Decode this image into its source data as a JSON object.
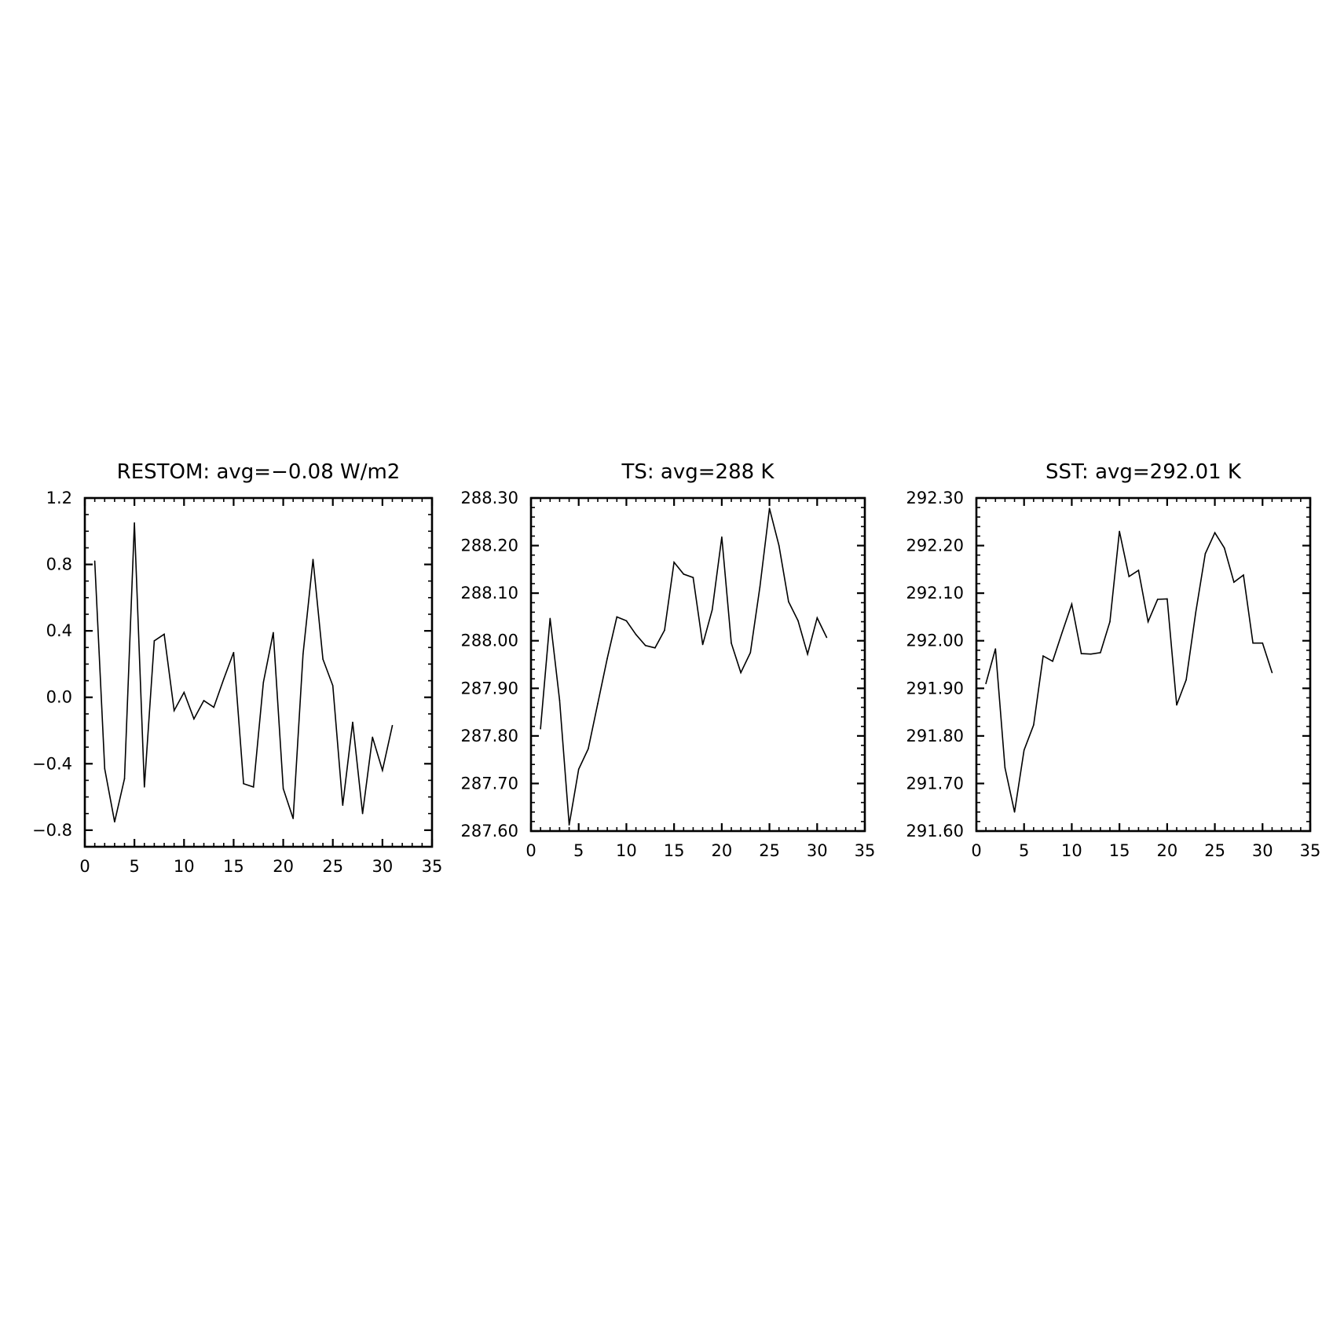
{
  "chart_data": [
    {
      "type": "line",
      "title": "RESTOM: avg=−0.08 W/m2",
      "xlabel": "",
      "ylabel": "",
      "xlim": [
        0,
        35
      ],
      "ylim": [
        -0.9,
        1.2
      ],
      "x_ticks": [
        0,
        5,
        10,
        15,
        20,
        25,
        30,
        35
      ],
      "x_tick_labels": [
        "0",
        "5",
        "10",
        "15",
        "20",
        "25",
        "30",
        "35"
      ],
      "x_minor_step": 1,
      "y_ticks": [
        -0.8,
        -0.4,
        0.0,
        0.4,
        0.8,
        1.2
      ],
      "y_tick_labels": [
        "−0.8",
        "−0.4",
        "0.0",
        "0.4",
        "0.8",
        "1.2"
      ],
      "y_minor_step": 0.1,
      "grid": false,
      "color": "#000000",
      "series": [
        {
          "x": [
            1,
            2,
            3,
            4,
            5,
            6,
            7,
            8,
            9,
            10,
            11,
            12,
            13,
            14,
            15,
            16,
            17,
            18,
            19,
            20,
            21,
            22,
            23,
            24,
            25,
            26,
            27,
            28,
            29,
            30,
            31
          ],
          "y": [
            0.82,
            -0.43,
            -0.75,
            -0.49,
            1.05,
            -0.54,
            0.34,
            0.38,
            -0.08,
            0.03,
            -0.13,
            -0.02,
            -0.06,
            0.11,
            0.27,
            -0.52,
            -0.54,
            0.09,
            0.39,
            -0.55,
            -0.73,
            0.26,
            0.83,
            0.23,
            0.07,
            -0.65,
            -0.15,
            -0.7,
            -0.24,
            -0.44,
            -0.17
          ]
        }
      ]
    },
    {
      "type": "line",
      "title": "TS: avg=288 K",
      "xlabel": "",
      "ylabel": "",
      "xlim": [
        0,
        35
      ],
      "ylim": [
        287.6,
        288.3
      ],
      "x_ticks": [
        0,
        5,
        10,
        15,
        20,
        25,
        30,
        35
      ],
      "x_tick_labels": [
        "0",
        "5",
        "10",
        "15",
        "20",
        "25",
        "30",
        "35"
      ],
      "x_minor_step": 1,
      "y_ticks": [
        287.6,
        287.7,
        287.8,
        287.9,
        288.0,
        288.1,
        288.2,
        288.3
      ],
      "y_tick_labels": [
        "287.60",
        "287.70",
        "287.80",
        "287.90",
        "288.00",
        "288.10",
        "288.20",
        "288.30"
      ],
      "y_minor_step": 0.02,
      "grid": false,
      "color": "#000000",
      "series": [
        {
          "x": [
            1,
            2,
            3,
            4,
            5,
            6,
            7,
            8,
            9,
            10,
            11,
            12,
            13,
            14,
            15,
            16,
            17,
            18,
            19,
            20,
            21,
            22,
            23,
            24,
            25,
            26,
            27,
            28,
            29,
            30,
            31
          ],
          "y": [
            287.815,
            288.047,
            287.875,
            287.613,
            287.73,
            287.773,
            287.868,
            287.963,
            288.05,
            288.042,
            288.013,
            287.99,
            287.985,
            288.022,
            288.165,
            288.14,
            288.133,
            287.992,
            288.065,
            288.218,
            287.995,
            287.933,
            287.975,
            288.113,
            288.278,
            288.2,
            288.082,
            288.042,
            287.972,
            288.048,
            288.007
          ]
        }
      ]
    },
    {
      "type": "line",
      "title": "SST: avg=292.01 K",
      "xlabel": "",
      "ylabel": "",
      "xlim": [
        0,
        35
      ],
      "ylim": [
        291.6,
        292.3
      ],
      "x_ticks": [
        0,
        5,
        10,
        15,
        20,
        25,
        30,
        35
      ],
      "x_tick_labels": [
        "0",
        "5",
        "10",
        "15",
        "20",
        "25",
        "30",
        "35"
      ],
      "x_minor_step": 1,
      "y_ticks": [
        291.6,
        291.7,
        291.8,
        291.9,
        292.0,
        292.1,
        292.2,
        292.3
      ],
      "y_tick_labels": [
        "291.60",
        "291.70",
        "291.80",
        "291.90",
        "292.00",
        "292.10",
        "292.20",
        "292.30"
      ],
      "y_minor_step": 0.02,
      "grid": false,
      "color": "#000000",
      "series": [
        {
          "x": [
            1,
            2,
            3,
            4,
            5,
            6,
            7,
            8,
            9,
            10,
            11,
            12,
            13,
            14,
            15,
            16,
            17,
            18,
            19,
            20,
            21,
            22,
            23,
            24,
            25,
            26,
            27,
            28,
            29,
            30,
            31
          ],
          "y": [
            291.91,
            291.983,
            291.733,
            291.64,
            291.77,
            291.823,
            291.968,
            291.957,
            292.018,
            292.077,
            291.973,
            291.972,
            291.975,
            292.04,
            292.23,
            292.135,
            292.148,
            292.04,
            292.087,
            292.088,
            291.865,
            291.918,
            292.06,
            292.183,
            292.227,
            292.195,
            292.123,
            292.138,
            291.995,
            291.995,
            291.933
          ]
        }
      ]
    }
  ]
}
